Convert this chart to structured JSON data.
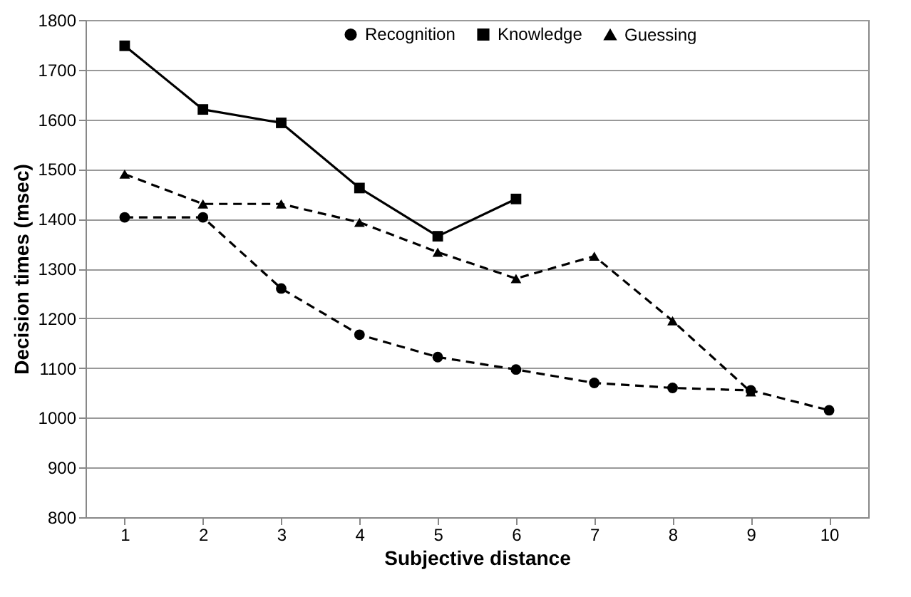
{
  "chart_data": {
    "type": "line",
    "xlabel": "Subjective distance",
    "ylabel": "Decision times (msec)",
    "categories": [
      "1",
      "2",
      "3",
      "4",
      "5",
      "6",
      "7",
      "8",
      "9",
      "10"
    ],
    "series": [
      {
        "name": "Recognition",
        "color": "#000000",
        "marker": "circle",
        "line_style": "dashed",
        "values": [
          1403,
          1403,
          1260,
          1167,
          1122,
          1097,
          1070,
          1060,
          1055,
          1015
        ]
      },
      {
        "name": "Knowledge",
        "color": "#000000",
        "marker": "square",
        "line_style": "solid",
        "values": [
          1748,
          1620,
          1593,
          1462,
          1365,
          1440,
          null,
          null,
          null,
          null
        ]
      },
      {
        "name": "Guessing",
        "color": "#000000",
        "marker": "triangle",
        "line_style": "dashed",
        "values": [
          1490,
          1430,
          1430,
          1393,
          1333,
          1280,
          1325,
          1195,
          1052,
          null
        ]
      }
    ],
    "ylim": [
      800,
      1800
    ],
    "yticks": [
      800,
      900,
      1000,
      1100,
      1200,
      1300,
      1400,
      1500,
      1600,
      1700,
      1800
    ],
    "grid": "y",
    "legend": "top"
  }
}
